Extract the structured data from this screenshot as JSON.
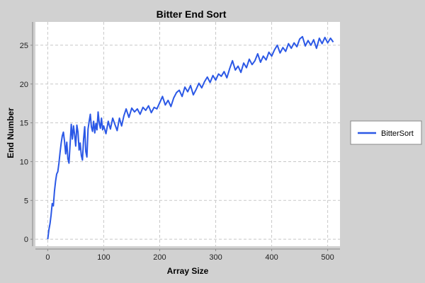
{
  "chart_data": {
    "type": "line",
    "title": "Bitter End Sort",
    "xlabel": "Array Size",
    "ylabel": "End Number",
    "xlim": [
      -22,
      522
    ],
    "ylim": [
      -0.9,
      28.0
    ],
    "x_ticks": [
      0,
      100,
      200,
      300,
      400,
      500
    ],
    "y_ticks": [
      0,
      5,
      10,
      15,
      20,
      25
    ],
    "grid": true,
    "legend_position": "right",
    "background_color": "#ffffff",
    "page_color": "#d1d1d1",
    "series": [
      {
        "name": "BitterSort",
        "color": "#2b58e6",
        "points": [
          [
            0,
            0.0
          ],
          [
            2,
            1.2
          ],
          [
            4,
            2.0
          ],
          [
            6,
            3.1
          ],
          [
            8,
            4.6
          ],
          [
            10,
            4.3
          ],
          [
            12,
            6.2
          ],
          [
            14,
            7.5
          ],
          [
            16,
            8.4
          ],
          [
            18,
            8.7
          ],
          [
            20,
            9.8
          ],
          [
            22,
            11.2
          ],
          [
            24,
            12.4
          ],
          [
            26,
            13.3
          ],
          [
            28,
            13.8
          ],
          [
            30,
            12.6
          ],
          [
            32,
            11.0
          ],
          [
            34,
            12.5
          ],
          [
            36,
            10.4
          ],
          [
            38,
            9.8
          ],
          [
            40,
            12.3
          ],
          [
            42,
            14.8
          ],
          [
            44,
            12.9
          ],
          [
            46,
            14.6
          ],
          [
            48,
            13.5
          ],
          [
            50,
            12.0
          ],
          [
            52,
            14.7
          ],
          [
            54,
            13.8
          ],
          [
            56,
            11.5
          ],
          [
            58,
            12.4
          ],
          [
            60,
            10.8
          ],
          [
            62,
            10.2
          ],
          [
            64,
            12.9
          ],
          [
            66,
            14.5
          ],
          [
            68,
            11.3
          ],
          [
            70,
            10.6
          ],
          [
            72,
            14.2
          ],
          [
            74,
            15.2
          ],
          [
            76,
            16.1
          ],
          [
            78,
            14.5
          ],
          [
            80,
            13.9
          ],
          [
            82,
            15.2
          ],
          [
            84,
            13.7
          ],
          [
            86,
            14.9
          ],
          [
            88,
            14.1
          ],
          [
            90,
            16.4
          ],
          [
            92,
            15.0
          ],
          [
            94,
            14.3
          ],
          [
            96,
            15.6
          ],
          [
            98,
            14.1
          ],
          [
            100,
            14.6
          ],
          [
            104,
            13.6
          ],
          [
            108,
            15.2
          ],
          [
            112,
            14.2
          ],
          [
            116,
            15.6
          ],
          [
            120,
            14.8
          ],
          [
            124,
            14.0
          ],
          [
            128,
            15.6
          ],
          [
            132,
            14.6
          ],
          [
            136,
            15.9
          ],
          [
            140,
            16.8
          ],
          [
            145,
            15.7
          ],
          [
            150,
            16.9
          ],
          [
            155,
            16.4
          ],
          [
            160,
            16.8
          ],
          [
            165,
            16.1
          ],
          [
            170,
            17.0
          ],
          [
            175,
            16.6
          ],
          [
            180,
            17.2
          ],
          [
            185,
            16.3
          ],
          [
            190,
            17.0
          ],
          [
            195,
            16.8
          ],
          [
            200,
            17.6
          ],
          [
            205,
            18.4
          ],
          [
            210,
            17.3
          ],
          [
            215,
            17.9
          ],
          [
            220,
            17.1
          ],
          [
            225,
            18.2
          ],
          [
            230,
            18.9
          ],
          [
            235,
            19.2
          ],
          [
            240,
            18.4
          ],
          [
            245,
            19.6
          ],
          [
            250,
            19.0
          ],
          [
            255,
            19.8
          ],
          [
            260,
            18.6
          ],
          [
            265,
            19.3
          ],
          [
            270,
            20.1
          ],
          [
            275,
            19.5
          ],
          [
            280,
            20.3
          ],
          [
            285,
            20.9
          ],
          [
            290,
            20.2
          ],
          [
            295,
            21.1
          ],
          [
            300,
            20.5
          ],
          [
            305,
            21.3
          ],
          [
            310,
            21.0
          ],
          [
            315,
            21.6
          ],
          [
            320,
            20.8
          ],
          [
            325,
            22.0
          ],
          [
            330,
            23.0
          ],
          [
            335,
            21.8
          ],
          [
            340,
            22.3
          ],
          [
            345,
            21.5
          ],
          [
            350,
            22.7
          ],
          [
            355,
            22.1
          ],
          [
            360,
            23.2
          ],
          [
            365,
            22.5
          ],
          [
            370,
            23.0
          ],
          [
            375,
            23.9
          ],
          [
            380,
            22.8
          ],
          [
            385,
            23.6
          ],
          [
            390,
            23.1
          ],
          [
            395,
            24.1
          ],
          [
            400,
            23.6
          ],
          [
            405,
            24.4
          ],
          [
            410,
            25.0
          ],
          [
            415,
            24.0
          ],
          [
            420,
            24.7
          ],
          [
            425,
            24.2
          ],
          [
            430,
            25.2
          ],
          [
            435,
            24.6
          ],
          [
            440,
            25.3
          ],
          [
            445,
            24.8
          ],
          [
            450,
            25.8
          ],
          [
            455,
            26.1
          ],
          [
            460,
            24.9
          ],
          [
            465,
            25.6
          ],
          [
            470,
            25.0
          ],
          [
            475,
            25.7
          ],
          [
            480,
            24.6
          ],
          [
            485,
            25.9
          ],
          [
            490,
            25.2
          ],
          [
            495,
            26.0
          ],
          [
            500,
            25.3
          ],
          [
            505,
            25.9
          ],
          [
            510,
            25.4
          ]
        ]
      }
    ]
  }
}
